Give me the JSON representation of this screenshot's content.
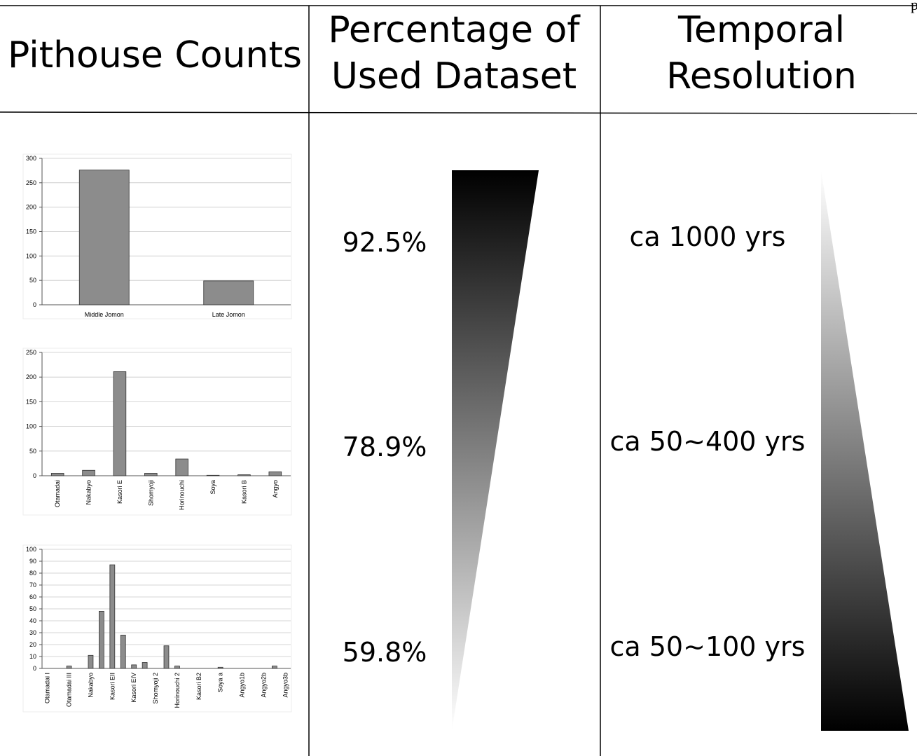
{
  "header_fragment": "pag",
  "table": {
    "headers": [
      [
        "Pithouse Counts"
      ],
      [
        "Percentage of",
        "Used Dataset"
      ],
      [
        "Temporal",
        "Resolution"
      ]
    ],
    "rows": [
      [
        "92.5%",
        "ca 1000 yrs"
      ],
      [
        "78.9%",
        "ca 50~400 yrs"
      ],
      [
        "59.8%",
        "ca 50~100 yrs"
      ]
    ]
  },
  "chart_data": [
    {
      "type": "bar",
      "categories": [
        "Middle Jomon",
        "Late Jomon"
      ],
      "values": [
        276,
        49
      ],
      "color": "#8c8c8c",
      "ylim": [
        0,
        300
      ],
      "yticks": [
        0,
        50,
        100,
        150,
        200,
        250,
        300
      ],
      "grid": true
    },
    {
      "type": "bar",
      "categories": [
        "Otamadai",
        "Nakabyo",
        "Kasori E",
        "Shomyoji",
        "Horinouchi",
        "Soya",
        "Kasori B",
        "Angyo"
      ],
      "values": [
        5,
        11,
        211,
        5,
        34,
        1,
        2,
        8
      ],
      "color": "#8c8c8c",
      "ylim": [
        0,
        250
      ],
      "yticks": [
        0,
        50,
        100,
        150,
        200,
        250
      ],
      "grid": true
    },
    {
      "type": "bar",
      "categories": [
        "Otamadai I",
        null,
        "Otamadai III",
        null,
        "Nakabyo",
        null,
        "Kasori EII",
        null,
        "Kasori EIV",
        null,
        "Shomyoji 2",
        null,
        "Horinouchi 2",
        null,
        "Kasori B2",
        null,
        "Soya a",
        null,
        "Angyo1b",
        null,
        "Angyo2b",
        null,
        "Angyo3b"
      ],
      "values": [
        0,
        0,
        2,
        0,
        11,
        48,
        87,
        28,
        3,
        5,
        0,
        19,
        2,
        0,
        0,
        0,
        1,
        0,
        0,
        0,
        0,
        2,
        0
      ],
      "color": "#8c8c8c",
      "ylim": [
        0,
        100
      ],
      "yticks": [
        0,
        10,
        20,
        30,
        40,
        50,
        60,
        70,
        80,
        90,
        100
      ],
      "grid": true
    }
  ]
}
